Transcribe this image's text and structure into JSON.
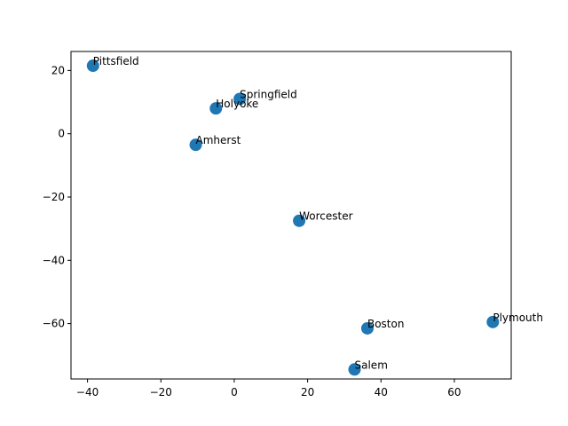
{
  "chart_data": {
    "type": "scatter",
    "title": "",
    "xlabel": "",
    "ylabel": "",
    "xlim": [
      -44.5,
      75.5
    ],
    "ylim": [
      -77.5,
      26
    ],
    "grid": false,
    "x_ticks": [
      -40,
      -20,
      0,
      20,
      40,
      60
    ],
    "y_ticks": [
      20,
      0,
      -20,
      -40,
      -60
    ],
    "x_tick_labels": [
      "−40",
      "−20",
      "0",
      "20",
      "40",
      "60"
    ],
    "y_tick_labels": [
      "20",
      "0",
      "−20",
      "−40",
      "−60"
    ],
    "color": "#1f77b4",
    "points": [
      {
        "label": "Pittsfield",
        "x": -38.5,
        "y": 21.5
      },
      {
        "label": "Springfield",
        "x": 1.5,
        "y": 11
      },
      {
        "label": "Holyoke",
        "x": -5,
        "y": 8
      },
      {
        "label": "Amherst",
        "x": -10.5,
        "y": -3.5
      },
      {
        "label": "Worcester",
        "x": 17.7,
        "y": -27.5
      },
      {
        "label": "Boston",
        "x": 36.3,
        "y": -61.5
      },
      {
        "label": "Plymouth",
        "x": 70.5,
        "y": -59.5
      },
      {
        "label": "Salem",
        "x": 32.8,
        "y": -74.5
      }
    ]
  }
}
